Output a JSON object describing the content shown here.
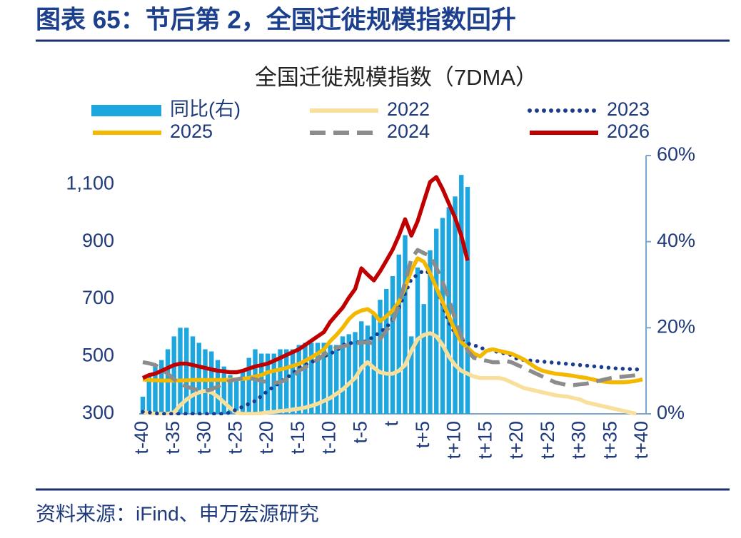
{
  "figure_title": "图表 65：节后第 2，全国迁徙规模指数回升",
  "source": "资料来源：iFind、申万宏源研究",
  "chart_data": {
    "type": "combo",
    "title": "全国迁徙规模指数（7DMA）",
    "categories": [
      "t-40",
      null,
      null,
      null,
      null,
      "t-35",
      null,
      null,
      null,
      null,
      "t-30",
      null,
      null,
      null,
      null,
      "t-25",
      null,
      null,
      null,
      null,
      "t-20",
      null,
      null,
      null,
      null,
      "t-15",
      null,
      null,
      null,
      null,
      "t-10",
      null,
      null,
      null,
      null,
      "t-5",
      null,
      null,
      null,
      null,
      "t",
      null,
      null,
      null,
      null,
      "t+5",
      null,
      null,
      null,
      null,
      "t+10",
      null,
      null,
      null,
      null,
      "t+15",
      null,
      null,
      null,
      null,
      "t+20",
      null,
      null,
      null,
      null,
      "t+25",
      null,
      null,
      null,
      null,
      "t+30",
      null,
      null,
      null,
      null,
      "t+35",
      null,
      null,
      null,
      null,
      "t+40"
    ],
    "ylim": [
      300,
      1200
    ],
    "yticks": [
      300,
      500,
      700,
      900,
      {
        "value": 1100,
        "label": "1,100"
      }
    ],
    "y2lim": [
      0,
      60
    ],
    "y2ticks": [
      {
        "value": 0,
        "label": "0%"
      },
      {
        "value": 20,
        "label": "20%"
      },
      {
        "value": 40,
        "label": "40%"
      },
      {
        "value": 60,
        "label": "60%"
      }
    ],
    "series": [
      {
        "name": "同比(右)",
        "type": "bar",
        "axis": "y2",
        "color": "#1ea7df",
        "values": [
          4,
          9,
          11,
          12.5,
          15,
          18,
          20,
          20,
          18,
          16.5,
          15,
          14.5,
          12.5,
          11,
          9,
          8,
          10,
          13,
          15,
          14,
          14,
          14,
          15,
          15,
          15,
          16,
          16.5,
          16.5,
          16.5,
          16.5,
          16,
          16,
          18,
          18.5,
          19,
          21.5,
          20.5,
          23,
          26.5,
          29,
          32,
          37,
          41.5,
          18,
          34,
          25.5,
          38,
          43,
          45.5,
          48,
          50.5,
          55.5,
          52.7,
          null,
          null,
          null,
          null,
          null,
          null,
          null,
          null,
          null,
          null,
          null,
          null,
          null,
          null,
          null,
          null,
          null,
          null,
          null,
          null,
          null,
          null,
          null,
          null,
          null,
          null,
          null,
          null
        ]
      },
      {
        "name": "2022",
        "type": "line",
        "style": "solid",
        "color": "#f8e09c",
        "values": [
          307,
          303,
          300,
          300,
          300,
          305,
          330,
          350,
          365,
          375,
          380,
          375,
          360,
          340,
          320,
          305,
          300,
          300,
          300,
          302,
          305,
          307,
          310,
          312,
          315,
          318,
          322,
          328,
          335,
          345,
          355,
          370,
          385,
          405,
          425,
          460,
          480,
          460,
          445,
          440,
          440,
          450,
          470,
          520,
          560,
          575,
          581,
          570,
          540,
          500,
          470,
          450,
          440,
          430,
          425,
          425,
          425,
          425,
          420,
          410,
          400,
          390,
          385,
          380,
          375,
          370,
          365,
          362,
          360,
          355,
          350,
          340,
          335,
          330,
          325,
          320,
          315,
          310,
          305,
          300,
          null
        ]
      },
      {
        "name": "2023",
        "type": "line",
        "style": "dotted",
        "color": "#1b3d8f",
        "values": [
          307,
          305,
          302,
          300,
          300,
          300,
          300,
          300,
          300,
          300,
          300,
          300,
          300,
          300,
          305,
          315,
          325,
          335,
          345,
          362,
          380,
          395,
          410,
          425,
          440,
          461,
          470,
          480,
          490,
          500,
          510,
          520,
          540,
          545,
          550,
          548,
          555,
          570,
          585,
          600,
          630,
          670,
          720,
          770,
          785,
          800,
          790,
          740,
          680,
          620,
          580,
          560,
          545,
          540,
          530,
          525,
          520,
          515,
          510,
          505,
          490,
          488,
          486,
          484,
          482,
          480,
          478,
          476,
          474,
          472,
          470,
          468,
          466,
          464,
          462,
          460,
          458,
          457,
          456,
          455,
          454
        ]
      },
      {
        "name": "2025",
        "type": "line",
        "style": "solid",
        "color": "#f5b800",
        "values": [
          420,
          418,
          417,
          416,
          416,
          416,
          416,
          417,
          418,
          418,
          418,
          418,
          418,
          418,
          419,
          420,
          422,
          425,
          430,
          435,
          445,
          450,
          455,
          460,
          467,
          474,
          485,
          497,
          510,
          525,
          553,
          575,
          600,
          630,
          650,
          660,
          665,
          650,
          623,
          640,
          660,
          690,
          740,
          800,
          842,
          830,
          790,
          740,
          690,
          640,
          590,
          550,
          530,
          510,
          500,
          519,
          525,
          520,
          515,
          510,
          500,
          490,
          475,
          460,
          450,
          445,
          440,
          438,
          435,
          432,
          428,
          425,
          420,
          415,
          412,
          410,
          410,
          410,
          412,
          415,
          420
        ]
      },
      {
        "name": "2024",
        "type": "line",
        "style": "dashed",
        "color": "#8c8c8c",
        "values": [
          480,
          476,
          470,
          455,
          440,
          420,
          405,
          395,
          388,
          382,
          380,
          385,
          395,
          405,
          415,
          420,
          425,
          425,
          420,
          415,
          410,
          408,
          410,
          420,
          430,
          450,
          462,
          475,
          490,
          505,
          524,
          530,
          535,
          540,
          545,
          548,
          550,
          545,
          560,
          590,
          620,
          680,
          760,
          840,
          871,
          860,
          850,
          810,
          760,
          700,
          630,
          570,
          520,
          495,
          490,
          485,
          480,
          480,
          485,
          480,
          470,
          460,
          450,
          440,
          430,
          420,
          410,
          405,
          400,
          400,
          403,
          405,
          410,
          415,
          420,
          425,
          428,
          430,
          432,
          435,
          435
        ]
      },
      {
        "name": "2026",
        "type": "line",
        "style": "solid",
        "color": "#c00000",
        "values": [
          425,
          435,
          440,
          450,
          460,
          470,
          475,
          475,
          470,
          465,
          460,
          455,
          450,
          448,
          445,
          445,
          450,
          458,
          465,
          470,
          475,
          485,
          495,
          505,
          515,
          525,
          540,
          555,
          570,
          585,
          620,
          645,
          670,
          705,
          735,
          807,
          785,
          765,
          797,
          834,
          872,
          921,
          978,
          921,
          971,
          1040,
          1108,
          1125,
          1083,
          1033,
          983,
          921,
          834,
          null,
          null,
          null,
          null,
          null,
          null,
          null,
          null,
          null,
          null,
          null,
          null,
          null,
          null,
          null,
          null,
          null,
          null,
          null,
          null,
          null,
          null,
          null,
          null,
          null,
          null,
          null,
          null
        ]
      }
    ]
  }
}
